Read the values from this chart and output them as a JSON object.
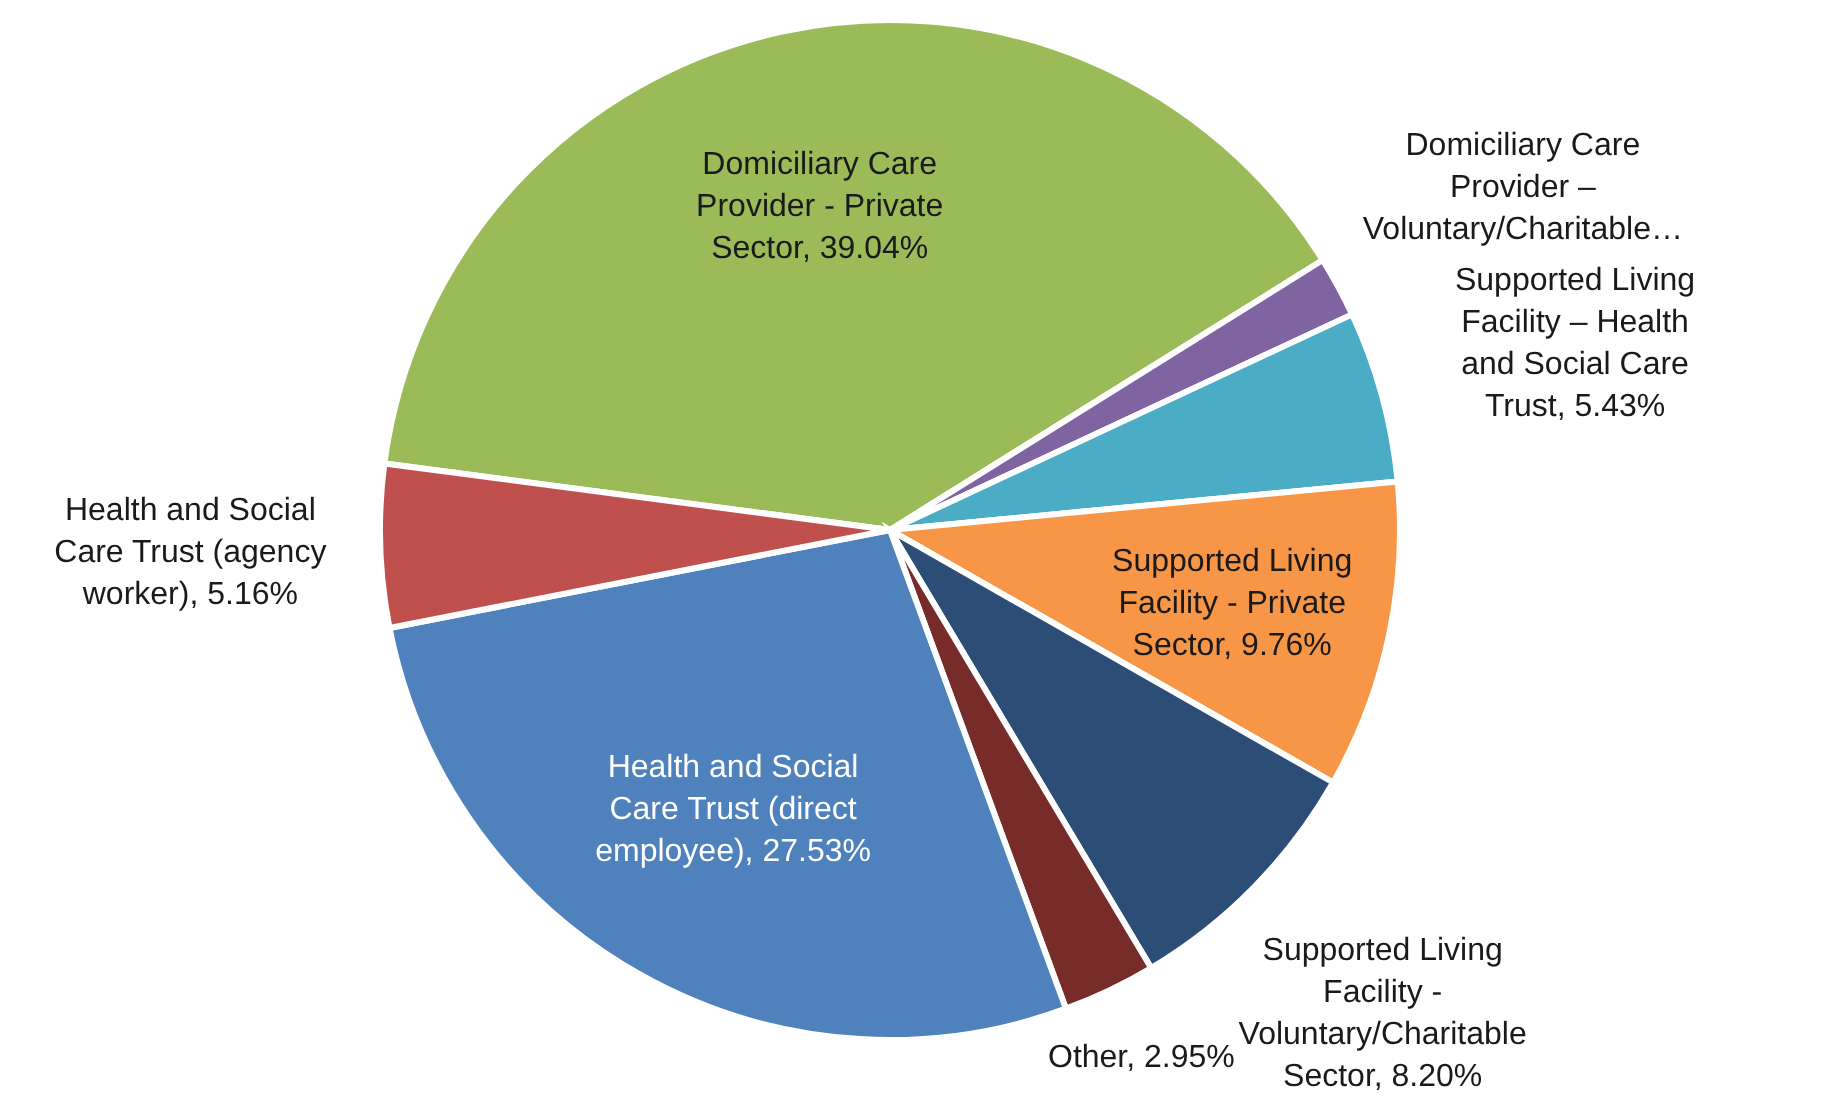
{
  "chart_data": {
    "type": "pie",
    "categories": [
      "Domiciliary Care Provider - Private Sector",
      "Domiciliary Care Provider – Voluntary/Charitable…",
      "Supported Living Facility – Health and Social Care Trust",
      "Supported Living Facility - Private Sector",
      "Supported Living Facility - Voluntary/Charitable Sector",
      "Other",
      "Health and Social Care Trust (direct employee)",
      "Health and Social Care Trust (agency worker)"
    ],
    "values": [
      39.04,
      1.93,
      5.43,
      9.76,
      8.2,
      2.95,
      27.53,
      5.16
    ],
    "value_labels": [
      "39.04%",
      null,
      "5.43%",
      "9.76%",
      "8.20%",
      "2.95%",
      "27.53%",
      "5.16%"
    ],
    "colors": [
      "#9bbb59",
      "#8064a2",
      "#4bacc6",
      "#f79646",
      "#2c4d75",
      "#772c2a",
      "#4f81bd",
      "#c0504d"
    ]
  }
}
